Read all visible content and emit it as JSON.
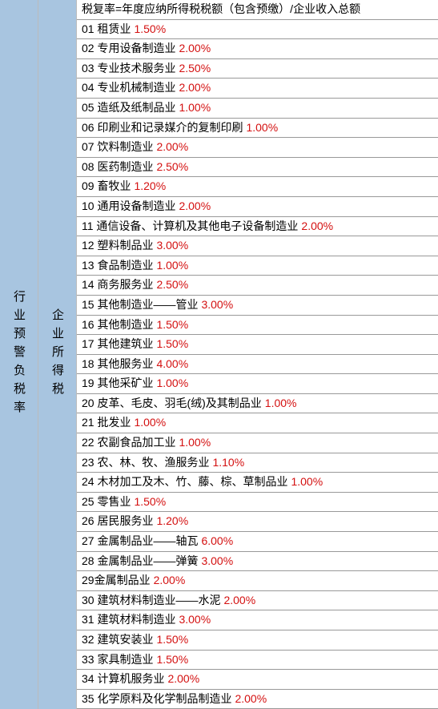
{
  "sidebar1": "行业预警负税率",
  "sidebar2": "企业所得税",
  "formula": "税复率=年度应纳所得税税额（包含预缴）/企业收入总额",
  "rows": [
    {
      "num": "01",
      "name": "租赁业",
      "rate": "1.50%"
    },
    {
      "num": "02",
      "name": "专用设备制造业",
      "rate": "2.00%"
    },
    {
      "num": "03",
      "name": "专业技术服务业",
      "rate": "2.50%"
    },
    {
      "num": "04",
      "name": "专业机械制造业",
      "rate": "2.00%"
    },
    {
      "num": "05",
      "name": "造纸及纸制品业",
      "rate": "1.00%"
    },
    {
      "num": "06",
      "name": "印刷业和记录媒介的复制印刷",
      "rate": "1.00%"
    },
    {
      "num": "07",
      "name": "饮料制造业",
      "rate": "2.00%"
    },
    {
      "num": "08",
      "name": "医药制造业",
      "rate": "2.50%"
    },
    {
      "num": "09",
      "name": "畜牧业",
      "rate": "1.20%"
    },
    {
      "num": "10",
      "name": "通用设备制造业",
      "rate": "2.00%"
    },
    {
      "num": "11",
      "name": "通信设备、计算机及其他电子设备制造业",
      "rate": "2.00%"
    },
    {
      "num": "12",
      "name": "塑料制品业",
      "rate": "3.00%"
    },
    {
      "num": "13",
      "name": "食品制造业",
      "rate": "1.00%"
    },
    {
      "num": "14",
      "name": "商务服务业",
      "rate": "2.50%"
    },
    {
      "num": "15",
      "name": "其他制造业——管业",
      "rate": "3.00%"
    },
    {
      "num": "16",
      "name": "其他制造业",
      "rate": "1.50%"
    },
    {
      "num": "17",
      "name": "其他建筑业",
      "rate": "1.50%"
    },
    {
      "num": "18",
      "name": "其他服务业",
      "rate": "4.00%"
    },
    {
      "num": "19",
      "name": "其他采矿业",
      "rate": "1.00%"
    },
    {
      "num": "20",
      "name": "皮革、毛皮、羽毛(绒)及其制品业",
      "rate": "1.00%"
    },
    {
      "num": "21",
      "name": "批发业",
      "rate": "1.00%"
    },
    {
      "num": "22",
      "name": "农副食品加工业",
      "rate": "1.00%"
    },
    {
      "num": "23",
      "name": "农、林、牧、渔服务业",
      "rate": "1.10%"
    },
    {
      "num": "24",
      "name": "木材加工及木、竹、藤、棕、草制品业",
      "rate": "1.00%"
    },
    {
      "num": "25",
      "name": "零售业",
      "rate": "1.50%"
    },
    {
      "num": "26",
      "name": "居民服务业",
      "rate": "1.20%"
    },
    {
      "num": "27",
      "name": "金属制品业——轴瓦",
      "rate": "6.00%"
    },
    {
      "num": "28",
      "name": "金属制品业——弹簧",
      "rate": "3.00%"
    },
    {
      "num": "29",
      "name": "金属制品业",
      "rate": "2.00%",
      "nospace": true
    },
    {
      "num": "30",
      "name": "建筑材料制造业——水泥",
      "rate": "2.00%"
    },
    {
      "num": "31",
      "name": "建筑材料制造业",
      "rate": "3.00%"
    },
    {
      "num": "32",
      "name": "建筑安装业",
      "rate": "1.50%"
    },
    {
      "num": "33",
      "name": "家具制造业",
      "rate": "1.50%"
    },
    {
      "num": "34",
      "name": "计算机服务业",
      "rate": "2.00%"
    },
    {
      "num": "35",
      "name": "化学原料及化学制品制造业",
      "rate": "2.00%"
    }
  ],
  "colors": {
    "sidebar_bg": "#a8c5e0",
    "rate_color": "#d41010",
    "text_color": "#000000",
    "border_color": "#999999"
  }
}
